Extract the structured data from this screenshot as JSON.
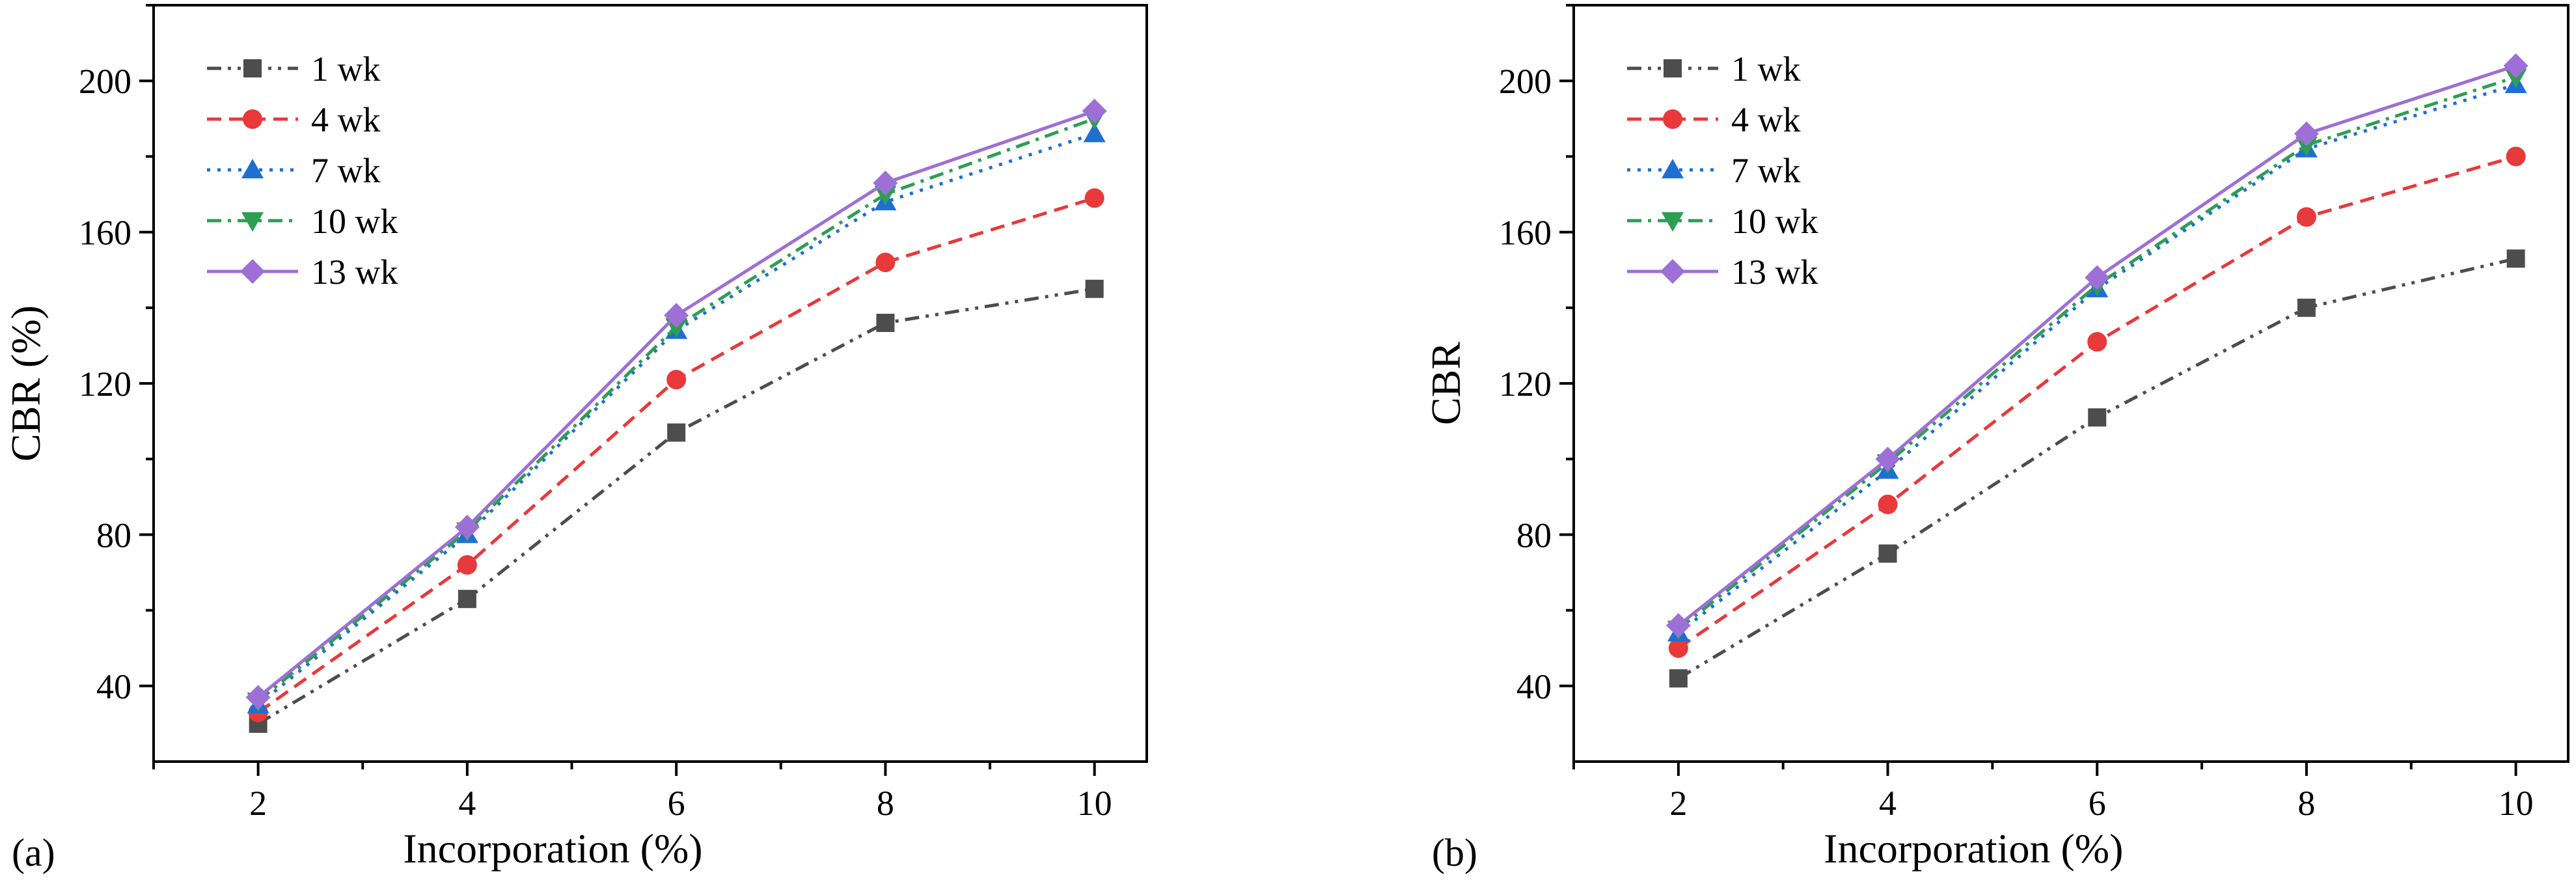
{
  "figure": {
    "panels": [
      {
        "label": "(a)"
      },
      {
        "label": "(b)"
      }
    ]
  },
  "chart_data": [
    {
      "type": "line",
      "panel": "(a)",
      "xlabel": "Incorporation (%)",
      "ylabel": "CBR (%)",
      "xlim": [
        1,
        10.5
      ],
      "ylim": [
        20,
        220
      ],
      "xticks": [
        2,
        4,
        6,
        8,
        10
      ],
      "yticks": [
        40,
        80,
        120,
        160,
        200
      ],
      "x": [
        2,
        4,
        6,
        8,
        10
      ],
      "legend_position": "top-left",
      "series": [
        {
          "name": "1 wk",
          "values": [
            30,
            63,
            107,
            136,
            145
          ],
          "color": "#4d4d4d",
          "dash": "dash-dot-dot",
          "marker": "square"
        },
        {
          "name": "4 wk",
          "values": [
            33,
            72,
            121,
            152,
            169
          ],
          "color": "#e8393b",
          "dash": "dash",
          "marker": "circle"
        },
        {
          "name": "7 wk",
          "values": [
            35,
            80,
            134,
            168,
            186
          ],
          "color": "#1f6fd1",
          "dash": "dot",
          "marker": "triangle-up"
        },
        {
          "name": "10 wk",
          "values": [
            36,
            81,
            135,
            170,
            190
          ],
          "color": "#2e9e55",
          "dash": "dash-dot",
          "marker": "triangle-down"
        },
        {
          "name": "13 wk",
          "values": [
            37,
            82,
            138,
            173,
            192
          ],
          "color": "#9e6fd6",
          "dash": "solid",
          "marker": "diamond"
        }
      ]
    },
    {
      "type": "line",
      "panel": "(b)",
      "xlabel": "Incorporation (%)",
      "ylabel": "CBR",
      "xlim": [
        1,
        10.5
      ],
      "ylim": [
        20,
        220
      ],
      "xticks": [
        2,
        4,
        6,
        8,
        10
      ],
      "yticks": [
        40,
        80,
        120,
        160,
        200
      ],
      "x": [
        2,
        4,
        6,
        8,
        10
      ],
      "legend_position": "top-left",
      "series": [
        {
          "name": "1 wk",
          "values": [
            42,
            75,
            111,
            140,
            153
          ],
          "color": "#4d4d4d",
          "dash": "dash-dot-dot",
          "marker": "square"
        },
        {
          "name": "4 wk",
          "values": [
            50,
            88,
            131,
            164,
            180
          ],
          "color": "#e8393b",
          "dash": "dash",
          "marker": "circle"
        },
        {
          "name": "7 wk",
          "values": [
            54,
            97,
            145,
            182,
            199
          ],
          "color": "#1f6fd1",
          "dash": "dot",
          "marker": "triangle-up"
        },
        {
          "name": "10 wk",
          "values": [
            55,
            99,
            146,
            183,
            201
          ],
          "color": "#2e9e55",
          "dash": "dash-dot",
          "marker": "triangle-down"
        },
        {
          "name": "13 wk",
          "values": [
            56,
            100,
            148,
            186,
            204
          ],
          "color": "#9e6fd6",
          "dash": "solid",
          "marker": "diamond"
        }
      ]
    }
  ]
}
